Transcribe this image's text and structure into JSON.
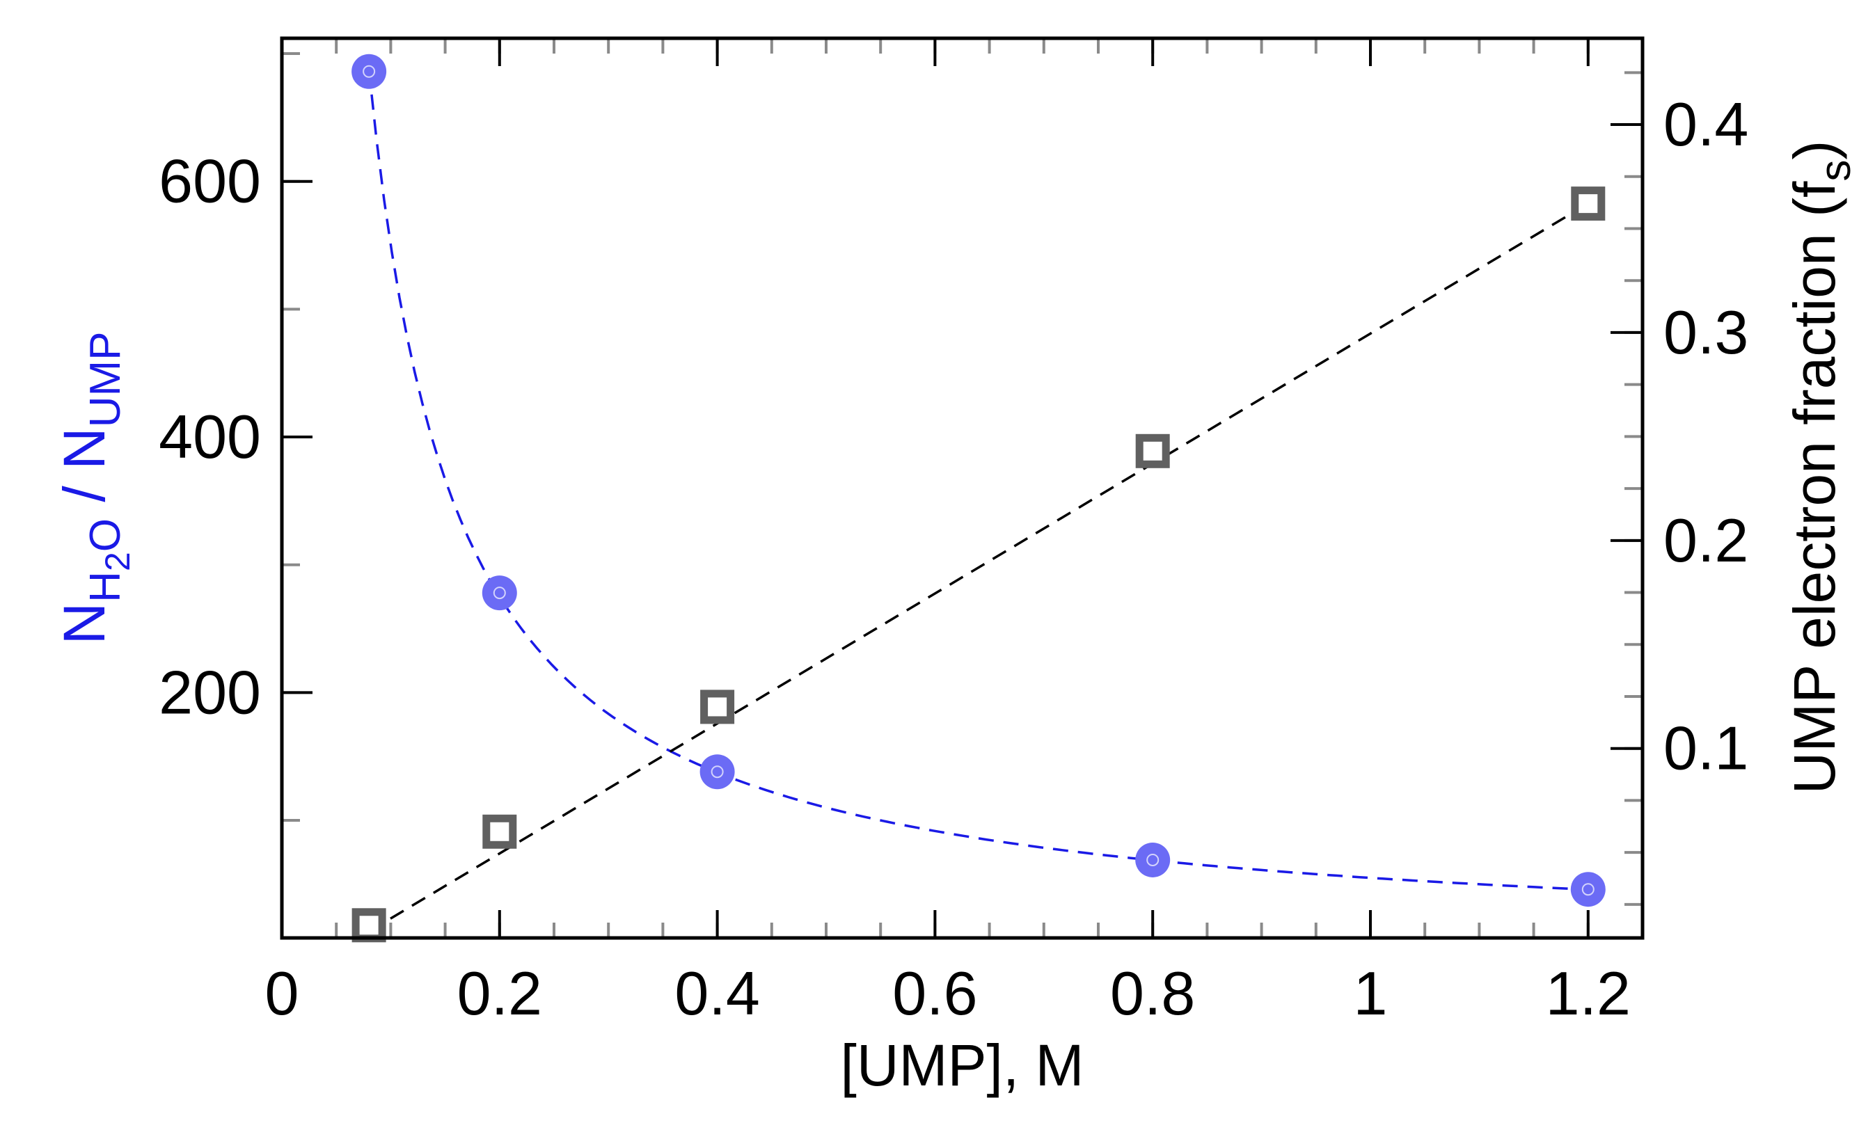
{
  "chart_data": {
    "type": "scatter",
    "title": "",
    "xlabel": "[UMP], M",
    "ylabel_left": {
      "parts": [
        {
          "text": "N",
          "role": "base"
        },
        {
          "text": "H",
          "role": "sub"
        },
        {
          "text": "2",
          "role": "subsub"
        },
        {
          "text": "O",
          "role": "sub"
        },
        {
          "text": " / N",
          "role": "base"
        },
        {
          "text": "UMP",
          "role": "sub"
        }
      ]
    },
    "ylabel_right": {
      "parts": [
        {
          "text": "UMP electron fraction (f",
          "role": "base"
        },
        {
          "text": "s",
          "role": "sub"
        },
        {
          "text": ")",
          "role": "base"
        }
      ]
    },
    "xlim": [
      0,
      1.25
    ],
    "ylim_left": [
      8,
      712
    ],
    "ylim_right": [
      0.0089,
      0.4415
    ],
    "x_ticks": [
      {
        "value": 0,
        "label": "0"
      },
      {
        "value": 0.2,
        "label": "0.2"
      },
      {
        "value": 0.4,
        "label": "0.4"
      },
      {
        "value": 0.6,
        "label": "0.6"
      },
      {
        "value": 0.8,
        "label": "0.8"
      },
      {
        "value": 1,
        "label": "1"
      },
      {
        "value": 1.2,
        "label": "1.2"
      }
    ],
    "y_left_ticks": [
      {
        "value": 200,
        "label": "200"
      },
      {
        "value": 400,
        "label": "400"
      },
      {
        "value": 600,
        "label": "600"
      }
    ],
    "y_right_ticks": [
      {
        "value": 0.1,
        "label": "0.1"
      },
      {
        "value": 0.2,
        "label": "0.2"
      },
      {
        "value": 0.3,
        "label": "0.3"
      },
      {
        "value": 0.4,
        "label": "0.4"
      }
    ],
    "x_minor_step": 0.05,
    "y_left_minor_step": 100,
    "y_right_minor_step": 0.025,
    "series": [
      {
        "name": "N_H2O / N_UMP",
        "axis": "left",
        "marker": "circle",
        "color": "#6b6bf5",
        "x": [
          0.08,
          0.2,
          0.4,
          0.8,
          1.2
        ],
        "y": [
          686,
          278,
          138,
          69,
          46
        ]
      },
      {
        "name": "UMP electron fraction (f_s)",
        "axis": "right",
        "marker": "square",
        "color": "#606060",
        "x": [
          0.08,
          0.2,
          0.4,
          0.8,
          1.2
        ],
        "y": [
          0.015,
          0.06,
          0.12,
          0.243,
          0.362
        ]
      }
    ],
    "fits": [
      {
        "name": "hyperbolic fit (left axis)",
        "axis": "left",
        "style": "dashed",
        "color": "#1a1ae6",
        "model": "a/x",
        "a": 55,
        "x_range": [
          0.08,
          1.2
        ]
      },
      {
        "name": "linear fit (right axis)",
        "axis": "right",
        "style": "dashed",
        "color": "#000000",
        "model": "linear",
        "points": [
          [
            0.08,
            0.012
          ],
          [
            1.2,
            0.362
          ]
        ]
      }
    ],
    "left_label_color": "#1a1ae6",
    "right_label_color": "#000000"
  }
}
